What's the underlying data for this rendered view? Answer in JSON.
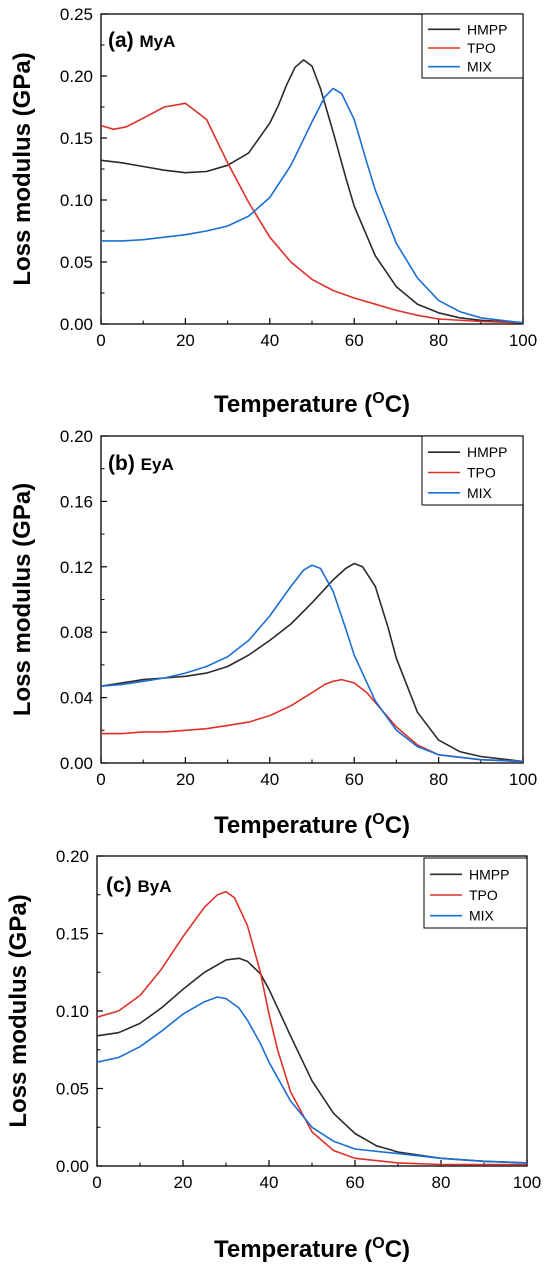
{
  "chart_data": [
    {
      "type": "line",
      "panel_label": "(a)",
      "panel_name": "MyA",
      "xlabel": "Temperature (",
      "xlabel_sup": "O",
      "xlabel_end": "C)",
      "ylabel": "Loss modulus (GPa)",
      "xlim": [
        0,
        100
      ],
      "ylim": [
        0,
        0.25
      ],
      "xticks": [
        "0",
        "20",
        "40",
        "60",
        "80",
        "100"
      ],
      "yticks": [
        "0.00",
        "0.05",
        "0.10",
        "0.15",
        "0.20",
        "0.25"
      ],
      "legend_position": "top-right",
      "series": [
        {
          "name": "HMPP",
          "color": "#2b2b2b",
          "x": [
            0,
            5,
            10,
            15,
            20,
            25,
            30,
            35,
            40,
            42,
            44,
            46,
            48,
            50,
            52,
            55,
            58,
            60,
            65,
            70,
            75,
            80,
            85,
            90,
            100
          ],
          "y": [
            0.132,
            0.13,
            0.127,
            0.124,
            0.122,
            0.123,
            0.128,
            0.138,
            0.162,
            0.176,
            0.193,
            0.207,
            0.213,
            0.208,
            0.19,
            0.155,
            0.118,
            0.095,
            0.055,
            0.03,
            0.016,
            0.009,
            0.005,
            0.003,
            0.001
          ]
        },
        {
          "name": "TPO",
          "color": "#e0302a",
          "x": [
            0,
            3,
            6,
            10,
            15,
            20,
            25,
            30,
            35,
            40,
            45,
            50,
            55,
            60,
            65,
            70,
            75,
            80,
            90,
            100
          ],
          "y": [
            0.16,
            0.157,
            0.159,
            0.166,
            0.175,
            0.178,
            0.165,
            0.13,
            0.098,
            0.07,
            0.05,
            0.036,
            0.027,
            0.021,
            0.016,
            0.011,
            0.007,
            0.004,
            0.002,
            0.001
          ]
        },
        {
          "name": "MIX",
          "color": "#1a6fd6",
          "x": [
            0,
            5,
            10,
            15,
            20,
            25,
            30,
            35,
            40,
            45,
            50,
            53,
            55,
            57,
            60,
            63,
            65,
            70,
            75,
            80,
            85,
            90,
            100
          ],
          "y": [
            0.067,
            0.067,
            0.068,
            0.07,
            0.072,
            0.075,
            0.079,
            0.087,
            0.102,
            0.128,
            0.163,
            0.183,
            0.19,
            0.186,
            0.165,
            0.13,
            0.108,
            0.065,
            0.037,
            0.019,
            0.01,
            0.005,
            0.001
          ]
        }
      ]
    },
    {
      "type": "line",
      "panel_label": "(b)",
      "panel_name": "EyA",
      "xlabel": "Temperature (",
      "xlabel_sup": "O",
      "xlabel_end": "C)",
      "ylabel": "Loss modulus (GPa)",
      "xlim": [
        0,
        100
      ],
      "ylim": [
        0,
        0.2
      ],
      "xticks": [
        "0",
        "20",
        "40",
        "60",
        "80",
        "100"
      ],
      "yticks": [
        "0.00",
        "0.04",
        "0.08",
        "0.12",
        "0.16",
        "0.20"
      ],
      "legend_position": "top-right",
      "series": [
        {
          "name": "HMPP",
          "color": "#2b2b2b",
          "x": [
            0,
            5,
            10,
            15,
            20,
            25,
            30,
            35,
            40,
            45,
            50,
            55,
            58,
            60,
            62,
            65,
            68,
            70,
            75,
            80,
            85,
            90,
            100
          ],
          "y": [
            0.047,
            0.049,
            0.051,
            0.052,
            0.053,
            0.055,
            0.059,
            0.066,
            0.075,
            0.085,
            0.098,
            0.112,
            0.119,
            0.122,
            0.12,
            0.108,
            0.083,
            0.064,
            0.031,
            0.014,
            0.007,
            0.004,
            0.001
          ]
        },
        {
          "name": "TPO",
          "color": "#e0302a",
          "x": [
            0,
            5,
            10,
            15,
            20,
            25,
            30,
            35,
            40,
            45,
            50,
            53,
            55,
            57,
            60,
            63,
            65,
            70,
            75,
            80,
            90,
            100
          ],
          "y": [
            0.018,
            0.018,
            0.019,
            0.019,
            0.02,
            0.021,
            0.023,
            0.025,
            0.029,
            0.035,
            0.043,
            0.048,
            0.05,
            0.051,
            0.049,
            0.043,
            0.037,
            0.022,
            0.011,
            0.005,
            0.002,
            0.001
          ]
        },
        {
          "name": "MIX",
          "color": "#1a6fd6",
          "x": [
            0,
            5,
            10,
            15,
            20,
            25,
            30,
            35,
            40,
            45,
            48,
            50,
            52,
            55,
            58,
            60,
            65,
            70,
            75,
            80,
            90,
            100
          ],
          "y": [
            0.047,
            0.048,
            0.05,
            0.052,
            0.055,
            0.059,
            0.065,
            0.075,
            0.09,
            0.108,
            0.118,
            0.121,
            0.119,
            0.105,
            0.082,
            0.066,
            0.038,
            0.02,
            0.01,
            0.005,
            0.002,
            0.001
          ]
        }
      ]
    },
    {
      "type": "line",
      "panel_label": "(c)",
      "panel_name": "ByA",
      "xlabel": "Temperature (",
      "xlabel_sup": "O",
      "xlabel_end": "C)",
      "ylabel": "Loss modulus (GPa)",
      "xlim": [
        0,
        100
      ],
      "ylim": [
        0,
        0.2
      ],
      "xticks": [
        "0",
        "20",
        "40",
        "60",
        "80",
        "100"
      ],
      "yticks": [
        "0.00",
        "0.05",
        "0.10",
        "0.15",
        "0.20"
      ],
      "legend_position": "top-right",
      "series": [
        {
          "name": "HMPP",
          "color": "#2b2b2b",
          "x": [
            0,
            5,
            10,
            15,
            20,
            25,
            30,
            33,
            35,
            38,
            40,
            45,
            50,
            55,
            60,
            65,
            70,
            80,
            90,
            100
          ],
          "y": [
            0.084,
            0.086,
            0.092,
            0.102,
            0.114,
            0.125,
            0.133,
            0.134,
            0.132,
            0.124,
            0.114,
            0.084,
            0.055,
            0.034,
            0.021,
            0.013,
            0.009,
            0.005,
            0.003,
            0.002
          ]
        },
        {
          "name": "TPO",
          "color": "#e0302a",
          "x": [
            0,
            5,
            10,
            15,
            20,
            25,
            28,
            30,
            32,
            35,
            38,
            40,
            42,
            45,
            50,
            55,
            60,
            70,
            80,
            90,
            100
          ],
          "y": [
            0.096,
            0.1,
            0.11,
            0.127,
            0.148,
            0.167,
            0.175,
            0.177,
            0.173,
            0.155,
            0.125,
            0.098,
            0.075,
            0.048,
            0.022,
            0.01,
            0.005,
            0.002,
            0.001,
            0.001,
            0.001
          ]
        },
        {
          "name": "MIX",
          "color": "#1a6fd6",
          "x": [
            0,
            5,
            10,
            15,
            20,
            25,
            28,
            30,
            33,
            35,
            38,
            40,
            45,
            50,
            55,
            60,
            70,
            80,
            90,
            100
          ],
          "y": [
            0.067,
            0.07,
            0.077,
            0.087,
            0.098,
            0.106,
            0.109,
            0.108,
            0.102,
            0.094,
            0.079,
            0.067,
            0.042,
            0.025,
            0.016,
            0.011,
            0.008,
            0.005,
            0.003,
            0.002
          ]
        }
      ]
    }
  ]
}
